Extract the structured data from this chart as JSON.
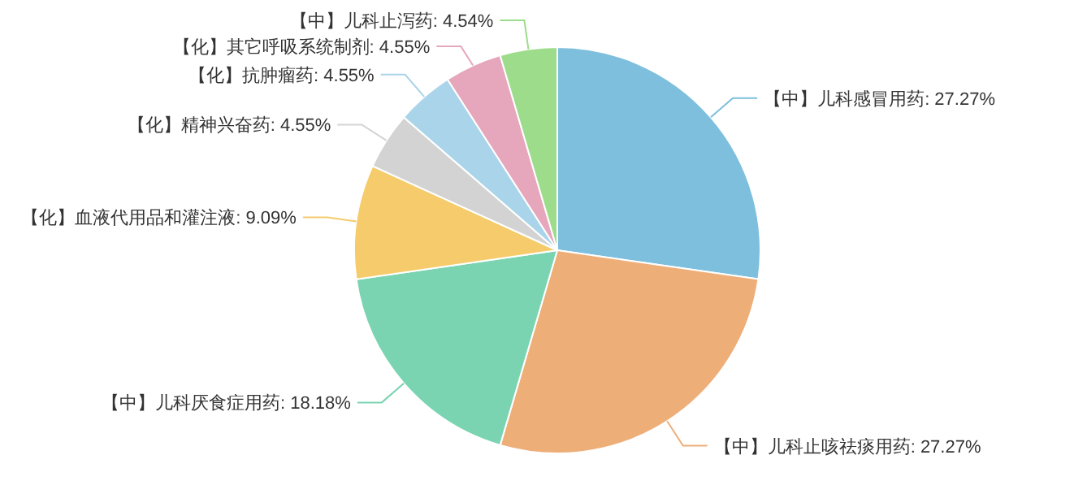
{
  "chart_data": {
    "type": "pie",
    "categories": [
      "【中】儿科感冒用药",
      "【中】儿科止咳祛痰用药",
      "【中】儿科厌食症用药",
      "【化】血液代用品和灌注液",
      "【化】精神兴奋药",
      "【化】抗肿瘤药",
      "【化】其它呼吸系统制剂",
      "【中】儿科止泻药"
    ],
    "values": [
      27.27,
      27.27,
      18.18,
      9.09,
      4.55,
      4.55,
      4.55,
      4.54
    ],
    "colors": [
      "#7dbfdd",
      "#eeae78",
      "#7ad4b2",
      "#f5cb6c",
      "#d3d3d3",
      "#a9d4e9",
      "#e6a6bb",
      "#9ddc8a"
    ],
    "value_labels": [
      ": 27.27%",
      ": 27.27%",
      ": 18.18%",
      ": 9.09%",
      ": 4.55%",
      ": 4.55%",
      ": 4.55%",
      ": 4.54%"
    ]
  }
}
